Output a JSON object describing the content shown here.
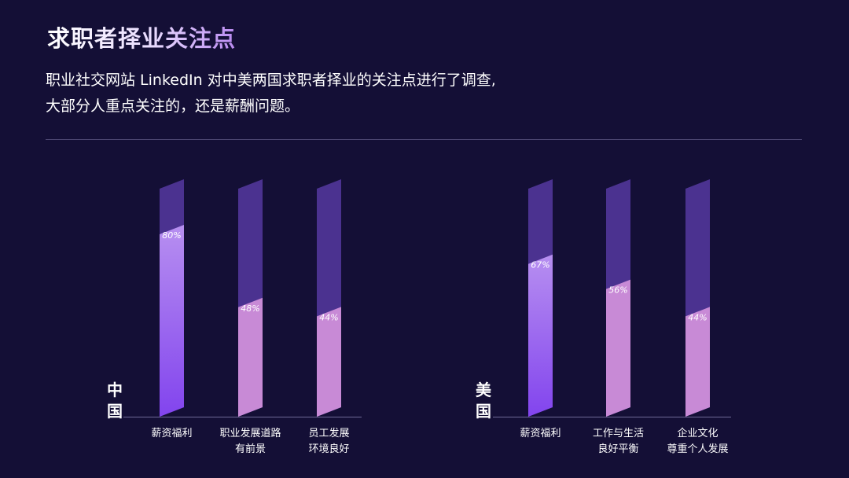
{
  "header": {
    "title": "求职者择业关注点",
    "desc_line1": "职业社交网站 LinkedIn 对中美两国求职者择业的关注点进行了调查,",
    "desc_line2": "大部分人重点关注的，还是薪酬问题。"
  },
  "colors": {
    "background": "#140f36",
    "bar_track": "#4b3290",
    "bar_primary_top": "#b78ff0",
    "bar_primary_bottom": "#8244ee",
    "bar_secondary": "#c88ad6",
    "axis": "#6f6a96"
  },
  "chart_data": [
    {
      "type": "bar",
      "group_label_chars": [
        "中",
        "国"
      ],
      "categories": [
        [
          "薪资福利"
        ],
        [
          "职业发展道路",
          "有前景"
        ],
        [
          "员工发展",
          "环境良好"
        ]
      ],
      "values": [
        80,
        48,
        44
      ],
      "value_labels": [
        "80%",
        "48%",
        "44%"
      ],
      "ylim": [
        0,
        100
      ],
      "unit": "%"
    },
    {
      "type": "bar",
      "group_label_chars": [
        "美",
        "国"
      ],
      "categories": [
        [
          "薪资福利"
        ],
        [
          "工作与生活",
          "良好平衡"
        ],
        [
          "企业文化",
          "尊重个人发展"
        ]
      ],
      "values": [
        67,
        56,
        44
      ],
      "value_labels": [
        "67%",
        "56%",
        "44%"
      ],
      "ylim": [
        0,
        100
      ],
      "unit": "%"
    }
  ]
}
